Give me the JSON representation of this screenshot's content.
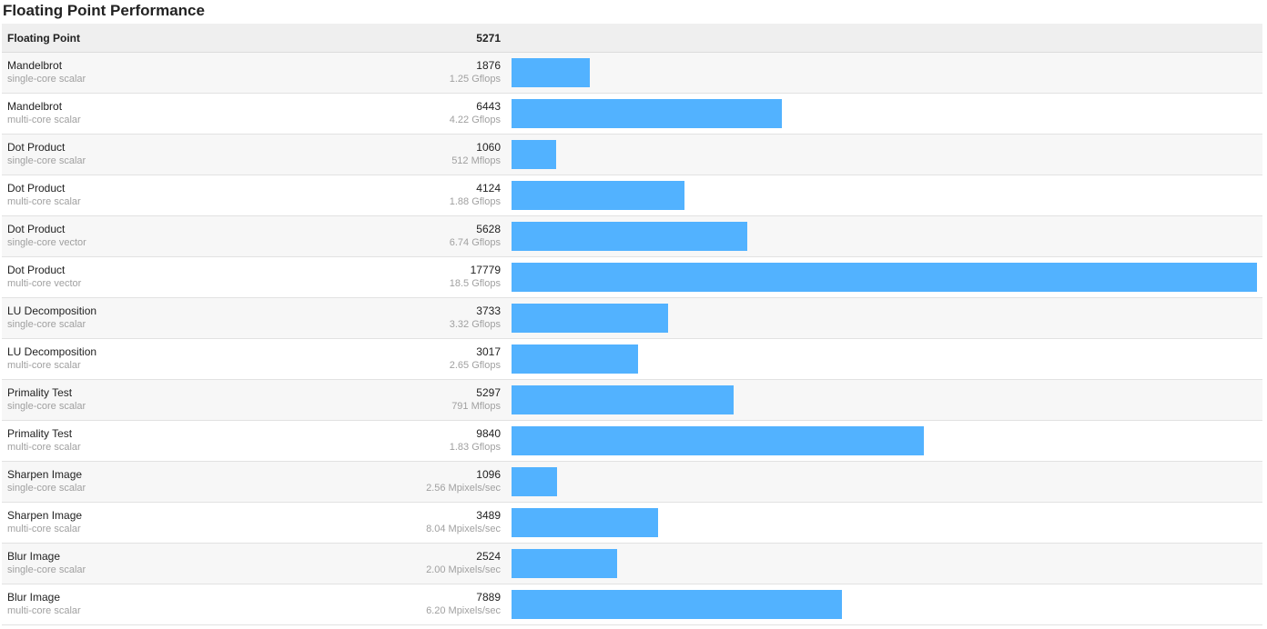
{
  "page_title": "Floating Point Performance",
  "colors": {
    "bar": "#52b2ff",
    "header_bg": "#efefef",
    "row_alt_bg": "#f7f7f7",
    "subtext": "#a0a0a0"
  },
  "chart_data": {
    "type": "bar",
    "orientation": "horizontal",
    "title": "Floating Point Performance",
    "header": {
      "label": "Floating Point",
      "score": "5271"
    },
    "xlim": [
      0,
      17779
    ],
    "rows": [
      {
        "name": "Mandelbrot",
        "sub": "single-core scalar",
        "score": 1876,
        "rate": "1.25 Gflops"
      },
      {
        "name": "Mandelbrot",
        "sub": "multi-core scalar",
        "score": 6443,
        "rate": "4.22 Gflops"
      },
      {
        "name": "Dot Product",
        "sub": "single-core scalar",
        "score": 1060,
        "rate": "512 Mflops"
      },
      {
        "name": "Dot Product",
        "sub": "multi-core scalar",
        "score": 4124,
        "rate": "1.88 Gflops"
      },
      {
        "name": "Dot Product",
        "sub": "single-core vector",
        "score": 5628,
        "rate": "6.74 Gflops"
      },
      {
        "name": "Dot Product",
        "sub": "multi-core vector",
        "score": 17779,
        "rate": "18.5 Gflops"
      },
      {
        "name": "LU Decomposition",
        "sub": "single-core scalar",
        "score": 3733,
        "rate": "3.32 Gflops"
      },
      {
        "name": "LU Decomposition",
        "sub": "multi-core scalar",
        "score": 3017,
        "rate": "2.65 Gflops"
      },
      {
        "name": "Primality Test",
        "sub": "single-core scalar",
        "score": 5297,
        "rate": "791 Mflops"
      },
      {
        "name": "Primality Test",
        "sub": "multi-core scalar",
        "score": 9840,
        "rate": "1.83 Gflops"
      },
      {
        "name": "Sharpen Image",
        "sub": "single-core scalar",
        "score": 1096,
        "rate": "2.56 Mpixels/sec"
      },
      {
        "name": "Sharpen Image",
        "sub": "multi-core scalar",
        "score": 3489,
        "rate": "8.04 Mpixels/sec"
      },
      {
        "name": "Blur Image",
        "sub": "single-core scalar",
        "score": 2524,
        "rate": "2.00 Mpixels/sec"
      },
      {
        "name": "Blur Image",
        "sub": "multi-core scalar",
        "score": 7889,
        "rate": "6.20 Mpixels/sec"
      }
    ]
  }
}
